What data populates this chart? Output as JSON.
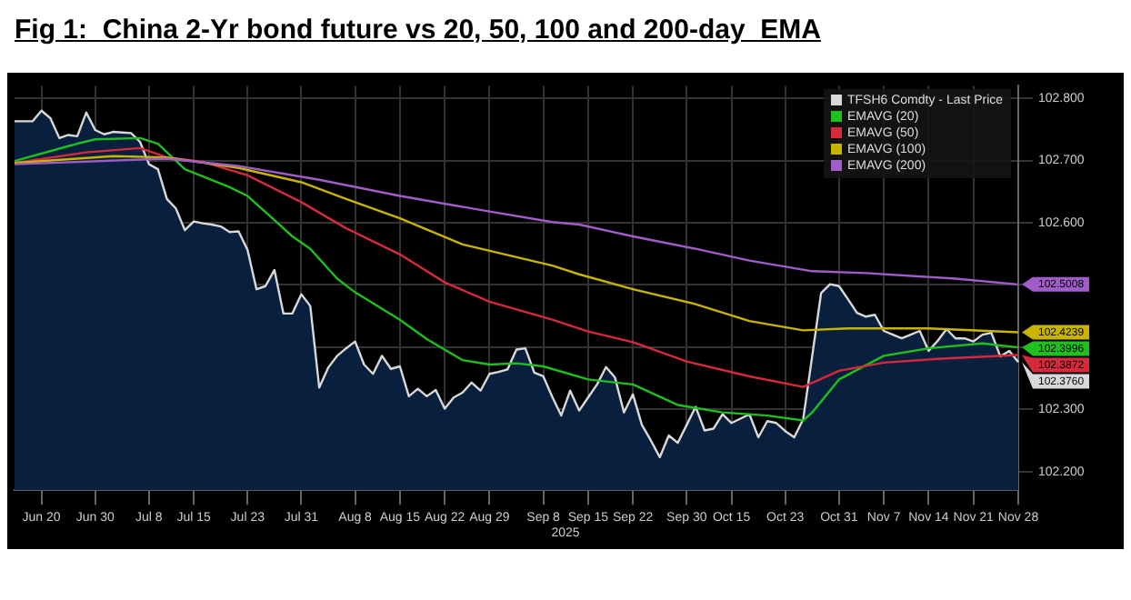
{
  "chart_data": {
    "type": "line",
    "title": "Fig 1:  China 2-Yr bond future vs 20, 50, 100 and 200-day  EMA",
    "xlabel": "2025",
    "categories": [
      null,
      null,
      null,
      "Jun 20",
      null,
      null,
      null,
      null,
      null,
      "Jun 30",
      null,
      null,
      null,
      null,
      null,
      "Jul 8",
      null,
      null,
      null,
      null,
      "Jul 15",
      null,
      null,
      null,
      null,
      null,
      "Jul 23",
      null,
      null,
      null,
      null,
      null,
      "Jul 31",
      null,
      null,
      null,
      null,
      null,
      "Aug 8",
      null,
      null,
      null,
      null,
      "Aug 15",
      null,
      null,
      null,
      null,
      "Aug 22",
      null,
      null,
      null,
      null,
      "Aug 29",
      null,
      null,
      null,
      null,
      null,
      "Sep 8",
      null,
      null,
      null,
      null,
      "Sep 15",
      null,
      null,
      null,
      null,
      "Sep 22",
      null,
      null,
      null,
      null,
      null,
      "Sep 30",
      null,
      null,
      null,
      null,
      "Oct 15",
      null,
      null,
      null,
      null,
      null,
      "Oct 23",
      null,
      null,
      null,
      null,
      null,
      "Oct 31",
      null,
      null,
      null,
      null,
      "Nov 7",
      null,
      null,
      null,
      null,
      "Nov 14",
      null,
      null,
      null,
      null,
      "Nov 21",
      null,
      null,
      null,
      null,
      "Nov 28"
    ],
    "ylim": [
      102.17,
      102.82
    ],
    "yticks": [
      {
        "value": 102.2,
        "label": "102.200"
      },
      {
        "value": 102.3,
        "label": "102.300"
      },
      {
        "value": 102.4,
        "label": null
      },
      {
        "value": 102.5,
        "label": null
      },
      {
        "value": 102.6,
        "label": "102.600"
      },
      {
        "value": 102.7,
        "label": "102.700"
      },
      {
        "value": 102.8,
        "label": "102.800"
      }
    ],
    "grid": true,
    "legend": "top right",
    "line_style": "solid",
    "series": [
      {
        "name": "TFSH6 Comdty - Last Price",
        "type": "area",
        "color": "#d9d9d9",
        "values": [
          102.763,
          102.763,
          102.763,
          102.78,
          102.768,
          102.736,
          102.741,
          102.739,
          102.777,
          102.749,
          102.742,
          102.746,
          102.745,
          102.744,
          102.73,
          102.694,
          102.686,
          102.638,
          102.623,
          102.588,
          102.602,
          102.599,
          102.597,
          102.594,
          102.585,
          102.586,
          102.556,
          102.493,
          102.498,
          102.524,
          102.454,
          102.454,
          102.485,
          102.466,
          102.335,
          102.367,
          102.386,
          102.398,
          102.409,
          102.372,
          102.357,
          102.386,
          102.365,
          102.369,
          102.321,
          102.333,
          102.321,
          102.331,
          102.301,
          102.319,
          102.327,
          102.343,
          102.33,
          102.357,
          102.36,
          102.364,
          102.396,
          102.398,
          102.359,
          102.353,
          102.32,
          102.29,
          102.33,
          102.298,
          102.319,
          102.34,
          102.368,
          102.351,
          102.295,
          102.324,
          102.275,
          102.25,
          102.223,
          102.258,
          102.246,
          102.275,
          102.304,
          102.266,
          102.269,
          102.292,
          102.278,
          102.285,
          102.292,
          102.255,
          102.281,
          102.278,
          102.265,
          102.255,
          102.284,
          102.385,
          102.487,
          102.501,
          102.498,
          102.477,
          102.455,
          102.449,
          102.452,
          102.426,
          102.42,
          102.414,
          102.42,
          102.426,
          102.394,
          102.41,
          102.429,
          102.414,
          102.414,
          102.409,
          102.42,
          102.423,
          102.385,
          102.394,
          102.376
        ]
      },
      {
        "name": "EMAVG (20)",
        "color": "#1fbf1f",
        "values": [
          102.699,
          null,
          null,
          null,
          null,
          null,
          102.723,
          102.727,
          null,
          102.734,
          null,
          null,
          null,
          null,
          102.736,
          null,
          102.727,
          null,
          null,
          102.686,
          null,
          null,
          null,
          null,
          102.657,
          null,
          102.643,
          null,
          null,
          102.604,
          null,
          102.578,
          null,
          102.558,
          null,
          null,
          102.51,
          null,
          102.488,
          null,
          null,
          null,
          null,
          102.444,
          null,
          null,
          102.413,
          null,
          null,
          null,
          102.379,
          null,
          null,
          102.372,
          null,
          null,
          102.374,
          null,
          null,
          102.369,
          null,
          null,
          null,
          null,
          102.348,
          null,
          null,
          null,
          null,
          102.34,
          null,
          null,
          null,
          null,
          102.307,
          null,
          null,
          null,
          null,
          102.295,
          null,
          null,
          null,
          null,
          102.29,
          null,
          null,
          null,
          102.282,
          102.295,
          null,
          null,
          102.348,
          null,
          null,
          null,
          null,
          102.386,
          null,
          null,
          null,
          null,
          102.398,
          null,
          null,
          null,
          null,
          null,
          102.406,
          null,
          null,
          null,
          102.3996
        ]
      },
      {
        "name": "EMAVG (50)",
        "color": "#d42a3c",
        "values": [
          102.696,
          null,
          null,
          null,
          null,
          null,
          null,
          null,
          102.713,
          null,
          null,
          null,
          null,
          null,
          102.72,
          null,
          null,
          102.705,
          null,
          null,
          null,
          102.698,
          null,
          null,
          null,
          null,
          102.676,
          null,
          null,
          null,
          null,
          null,
          102.633,
          null,
          null,
          null,
          null,
          102.591,
          null,
          null,
          null,
          null,
          null,
          102.549,
          null,
          null,
          null,
          null,
          102.504,
          null,
          null,
          null,
          null,
          102.473,
          null,
          null,
          null,
          null,
          null,
          null,
          102.444,
          null,
          null,
          null,
          102.425,
          null,
          null,
          null,
          null,
          102.408,
          null,
          null,
          null,
          null,
          null,
          102.377,
          null,
          null,
          null,
          null,
          null,
          null,
          102.353,
          null,
          null,
          null,
          null,
          null,
          102.336,
          null,
          null,
          null,
          102.362,
          null,
          null,
          null,
          null,
          102.375,
          null,
          null,
          null,
          null,
          null,
          102.381,
          null,
          null,
          null,
          null,
          null,
          null,
          null,
          null,
          102.3872
        ]
      },
      {
        "name": "EMAVG (100)",
        "color": "#c9b400",
        "values": [
          102.696,
          null,
          null,
          null,
          null,
          null,
          null,
          null,
          null,
          null,
          null,
          102.707,
          null,
          null,
          null,
          null,
          null,
          102.705,
          null,
          null,
          null,
          null,
          null,
          null,
          null,
          102.688,
          null,
          null,
          null,
          null,
          null,
          null,
          102.665,
          null,
          null,
          null,
          null,
          102.638,
          null,
          null,
          null,
          null,
          null,
          102.607,
          null,
          null,
          null,
          null,
          null,
          null,
          102.565,
          null,
          null,
          null,
          null,
          null,
          null,
          null,
          null,
          null,
          102.531,
          null,
          null,
          102.517,
          null,
          null,
          null,
          null,
          null,
          102.493,
          null,
          null,
          null,
          null,
          null,
          null,
          102.469,
          null,
          null,
          null,
          null,
          null,
          102.442,
          null,
          null,
          null,
          null,
          null,
          102.427,
          null,
          null,
          null,
          null,
          102.43,
          null,
          null,
          null,
          null,
          null,
          null,
          null,
          null,
          102.43,
          null,
          null,
          null,
          null,
          null,
          null,
          null,
          null,
          null,
          102.4239
        ]
      },
      {
        "name": "EMAVG (200)",
        "color": "#a05cc8",
        "values": [
          102.694,
          null,
          null,
          null,
          null,
          null,
          null,
          null,
          null,
          null,
          null,
          null,
          null,
          null,
          null,
          null,
          null,
          102.703,
          null,
          null,
          null,
          null,
          null,
          null,
          null,
          102.691,
          null,
          null,
          null,
          null,
          null,
          null,
          null,
          null,
          102.669,
          null,
          null,
          null,
          null,
          null,
          null,
          null,
          null,
          102.643,
          null,
          null,
          null,
          null,
          null,
          null,
          null,
          null,
          null,
          102.618,
          null,
          null,
          null,
          null,
          null,
          null,
          102.601,
          null,
          null,
          102.597,
          null,
          null,
          null,
          null,
          null,
          102.578,
          null,
          null,
          null,
          null,
          null,
          null,
          102.558,
          null,
          null,
          null,
          null,
          null,
          102.539,
          null,
          null,
          null,
          null,
          null,
          null,
          102.522,
          null,
          null,
          null,
          null,
          null,
          102.519,
          null,
          null,
          null,
          null,
          null,
          null,
          null,
          null,
          null,
          102.51,
          null,
          null,
          null,
          null,
          null,
          null,
          102.5008
        ]
      }
    ],
    "annotations": [
      {
        "text": "102.3760",
        "x": "Nov 28",
        "y": 102.376
      },
      {
        "text": "102.3996",
        "x": "Nov 28",
        "y": 102.3996
      },
      {
        "text": "102.3872",
        "x": "Nov 28",
        "y": 102.3872
      },
      {
        "text": "102.4239",
        "x": "Nov 28",
        "y": 102.4239
      },
      {
        "text": "102.5008",
        "x": "Nov 28",
        "y": 102.5008
      }
    ]
  }
}
